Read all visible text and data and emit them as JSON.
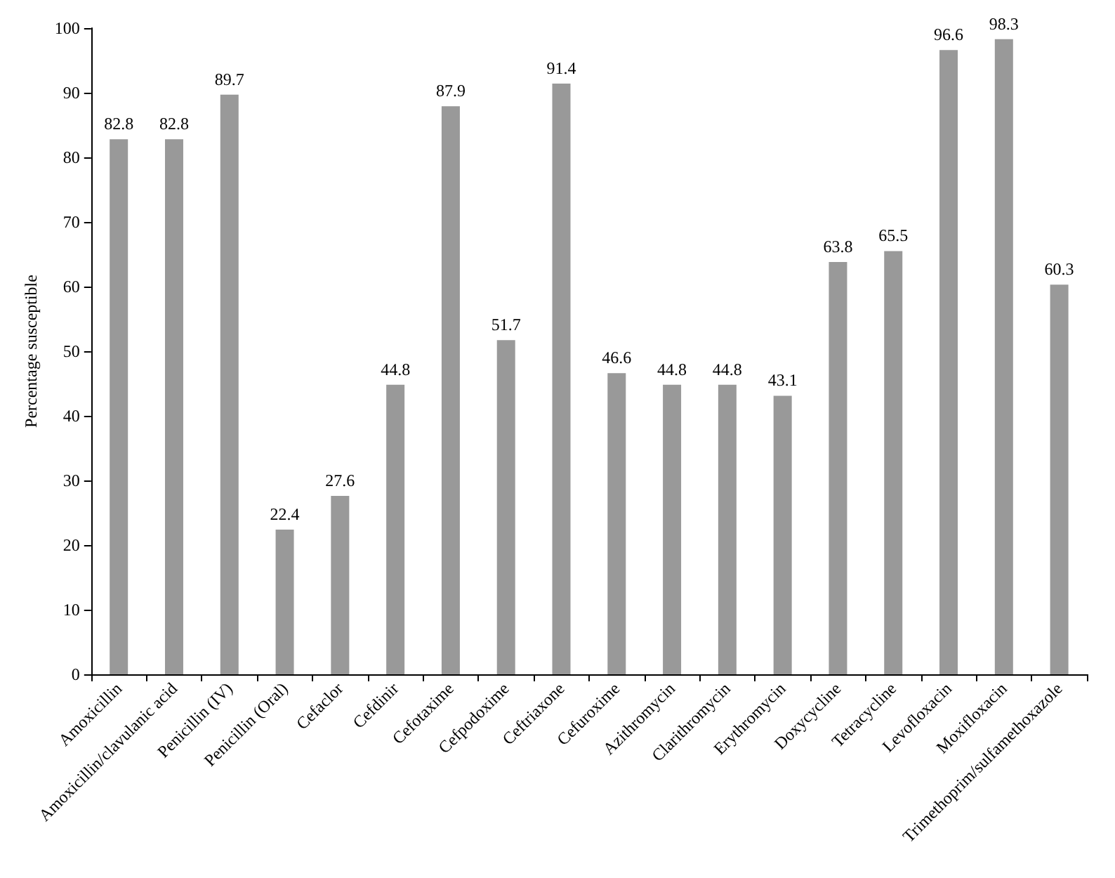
{
  "chart_data": {
    "type": "bar",
    "ylabel": "Percentage susceptible",
    "categories": [
      "Amoxicillin",
      "Amoxicillin/clavulanic acid",
      "Penicillin (IV)",
      "Penicillin (Oral)",
      "Cefaclor",
      "Cefdinir",
      "Cefotaxime",
      "Cefpodoxime",
      "Ceftriaxone",
      "Cefuroxime",
      "Azithromycin",
      "Clarithromycin",
      "Erythromycin",
      "Doxycycline",
      "Tetracycline",
      "Levofloxacin",
      "Moxifloxacin",
      "Trimethoprim/sulfamethoxazole"
    ],
    "values": [
      82.8,
      82.8,
      89.7,
      22.4,
      27.6,
      44.8,
      87.9,
      51.7,
      91.4,
      46.6,
      44.8,
      44.8,
      43.1,
      63.8,
      65.5,
      96.6,
      98.3,
      60.3
    ],
    "color": "#999999",
    "ylim": [
      0,
      100
    ],
    "yticks": [
      0,
      10,
      20,
      30,
      40,
      50,
      60,
      70,
      80,
      90,
      100
    ],
    "grid": false,
    "data_labels": true
  }
}
